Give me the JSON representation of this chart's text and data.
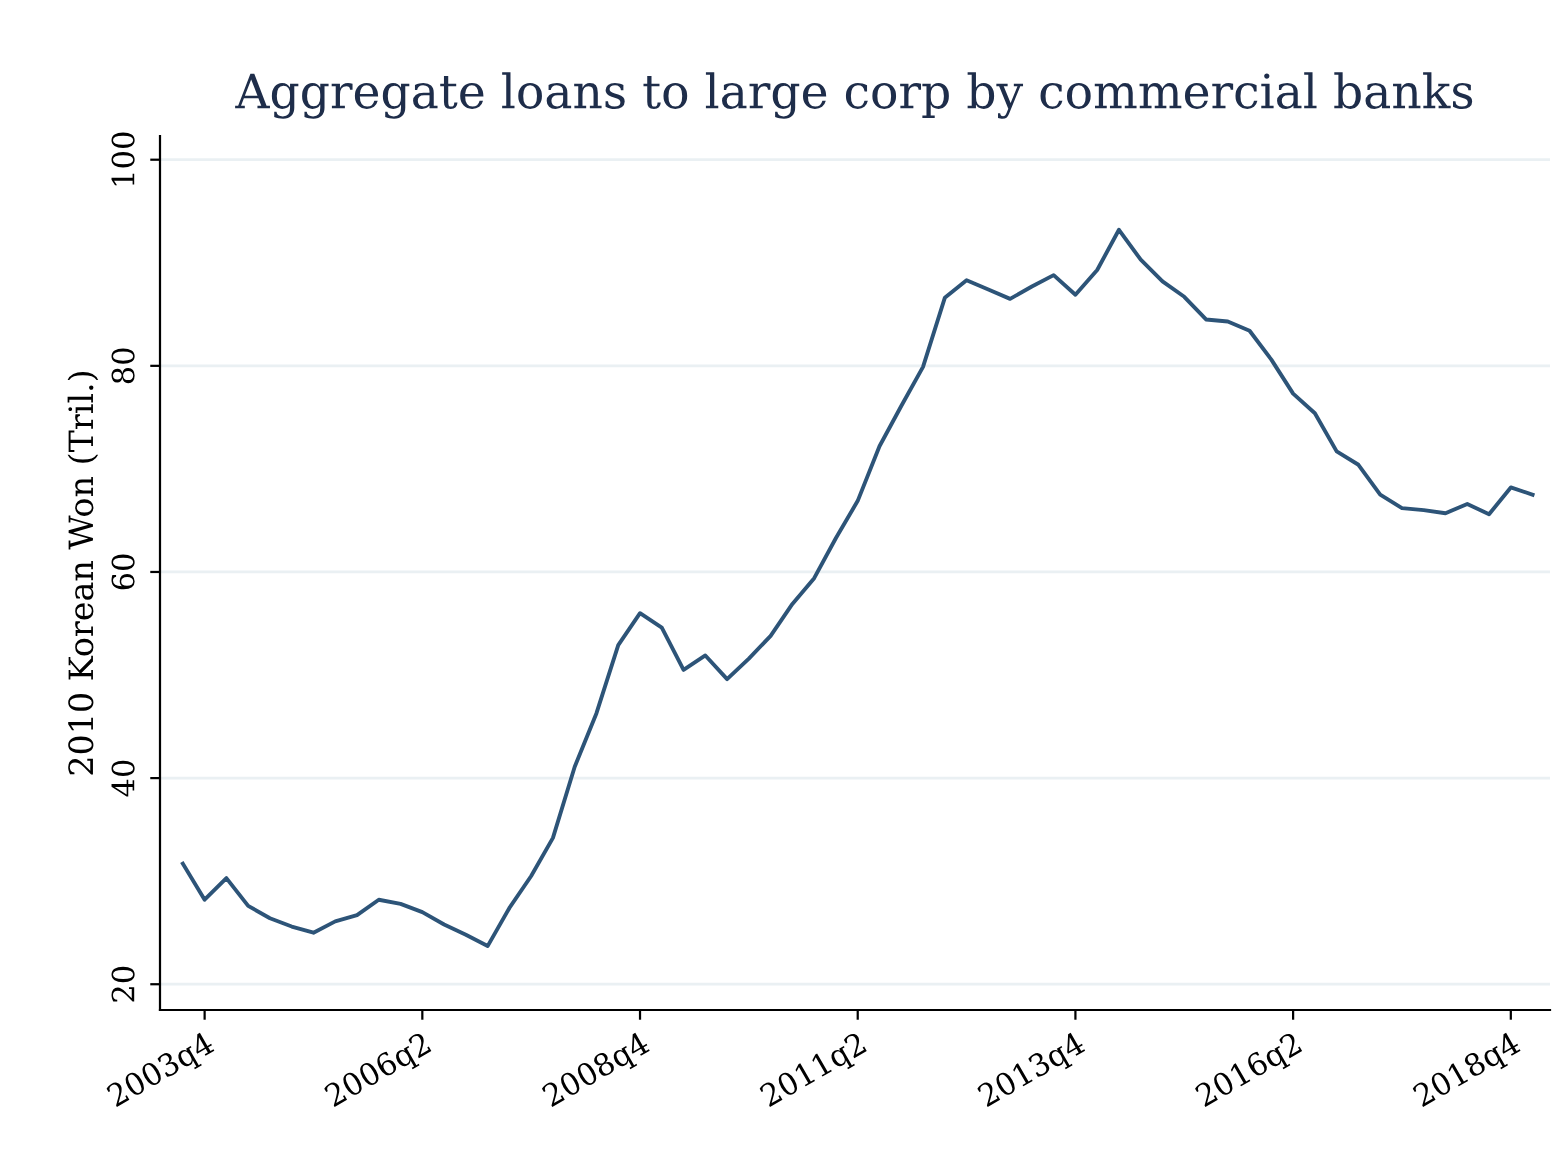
{
  "chart_data": {
    "type": "line",
    "title": "Aggregate loans to large corp by commercial banks",
    "ylabel": "2010 Korean Won (Tril.)",
    "categories": [
      null,
      "2003q4",
      null,
      null,
      null,
      null,
      null,
      null,
      null,
      null,
      null,
      "2006q2",
      null,
      null,
      null,
      null,
      null,
      null,
      null,
      null,
      null,
      "2008q4",
      null,
      null,
      null,
      null,
      null,
      null,
      null,
      null,
      null,
      "2011q2",
      null,
      null,
      null,
      null,
      null,
      null,
      null,
      null,
      null,
      "2013q4",
      null,
      null,
      null,
      null,
      null,
      null,
      null,
      null,
      null,
      "2016q2",
      null,
      null,
      null,
      null,
      null,
      null,
      null,
      null,
      null,
      "2018q4",
      null
    ],
    "series": [
      {
        "color": "#2d5478",
        "values": [
          31.7,
          28.2,
          30.3,
          27.6,
          26.4,
          25.6,
          25.0,
          26.1,
          26.7,
          28.2,
          27.8,
          27.0,
          25.8,
          24.8,
          23.7,
          27.4,
          30.5,
          34.2,
          41.1,
          46.3,
          52.9,
          56.0,
          54.6,
          50.5,
          51.9,
          49.6,
          51.6,
          53.8,
          56.9,
          59.4,
          63.3,
          66.9,
          72.2,
          76.1,
          79.9,
          86.6,
          88.3,
          87.4,
          86.5,
          87.7,
          88.8,
          86.9,
          89.3,
          93.2,
          90.3,
          88.2,
          86.7,
          84.5,
          84.3,
          83.4,
          80.6,
          77.3,
          75.4,
          71.7,
          70.4,
          67.5,
          66.2,
          66.0,
          65.7,
          66.6,
          65.6,
          68.2,
          67.5
        ]
      }
    ],
    "ylim": [
      17.5,
      102.3
    ],
    "yticks": [
      20,
      40,
      60,
      80,
      100
    ],
    "grid": "y",
    "legend": false,
    "marker": "none",
    "line_style": "solid"
  }
}
